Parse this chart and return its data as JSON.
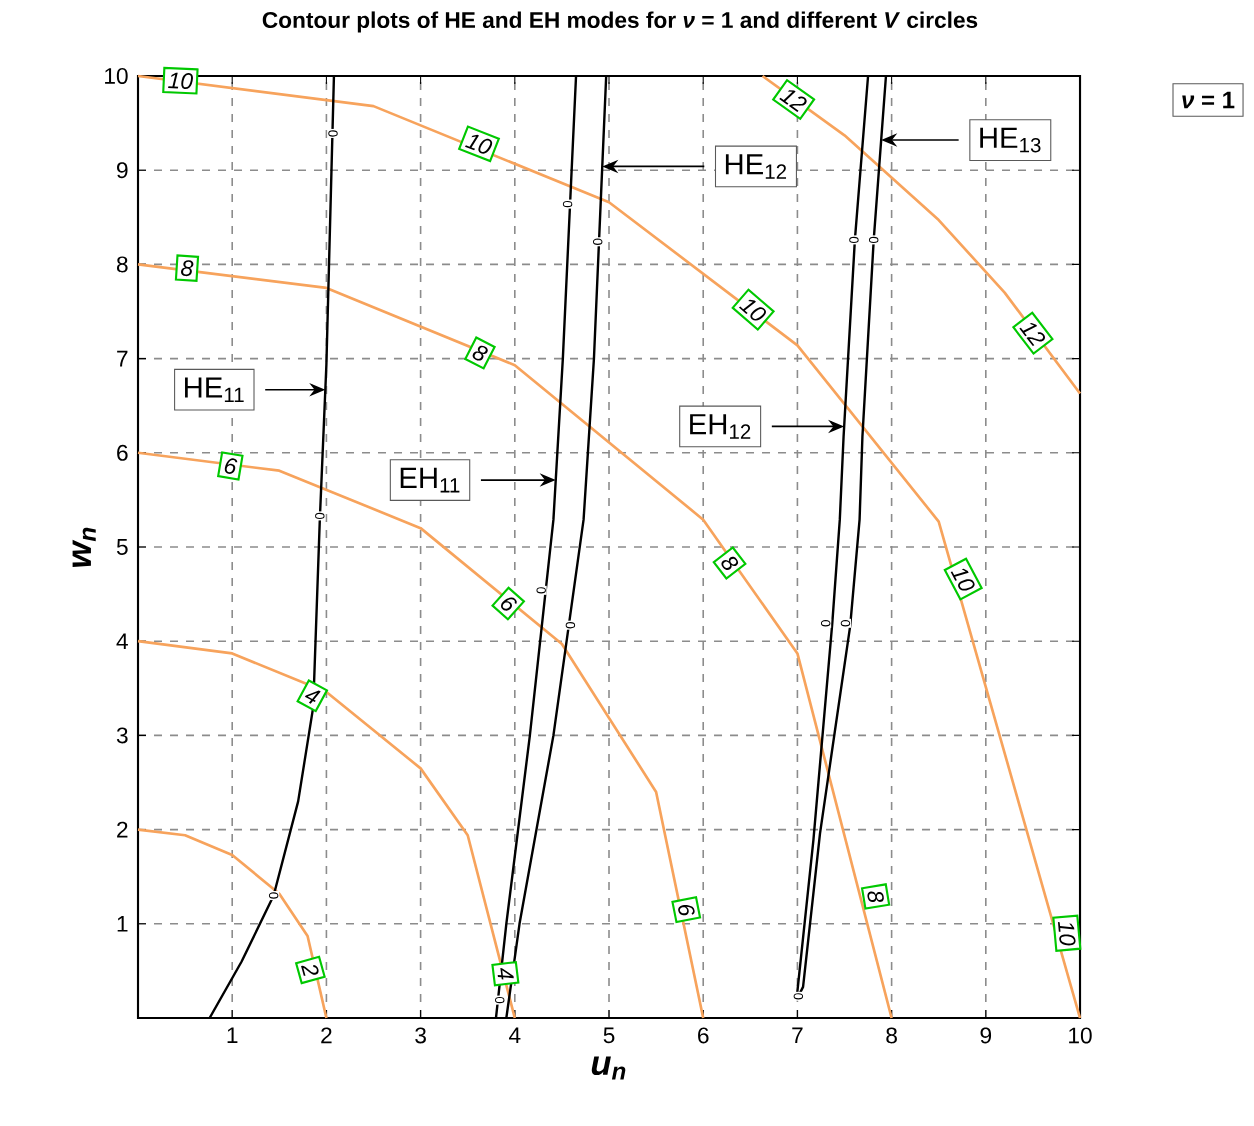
{
  "chart_data": {
    "type": "line",
    "title": "Contour plots of HE and EH modes for *ν* = 1 and different *V* circles",
    "xlabel": "u$_{n}$",
    "ylabel": "w$_{n}$",
    "xlim": [
      0,
      10
    ],
    "ylim": [
      0,
      10
    ],
    "xticks": [
      1,
      2,
      3,
      4,
      5,
      6,
      7,
      8,
      9,
      10
    ],
    "yticks": [
      1,
      2,
      3,
      4,
      5,
      6,
      7,
      8,
      9,
      10
    ],
    "grid": true,
    "marker": "none",
    "line_style": "solid",
    "series": [
      {
        "color": "#f7a35c",
        "x": [
          0,
          0.5,
          1,
          1.5,
          1.8,
          2
        ],
        "values": [
          2,
          1.94,
          1.73,
          1.32,
          0.87,
          0
        ]
      },
      {
        "color": "#f7a35c",
        "x": [
          0,
          1,
          2,
          3,
          3.5,
          4
        ],
        "values": [
          4,
          3.87,
          3.46,
          2.65,
          1.94,
          0
        ]
      },
      {
        "color": "#f7a35c",
        "x": [
          0,
          1.5,
          3,
          4.5,
          5.5,
          6
        ],
        "values": [
          6,
          5.81,
          5.2,
          3.97,
          2.4,
          0
        ]
      },
      {
        "color": "#f7a35c",
        "x": [
          0,
          2,
          4,
          6,
          7,
          8
        ],
        "values": [
          8,
          7.75,
          6.93,
          5.29,
          3.87,
          0
        ]
      },
      {
        "color": "#f7a35c",
        "x": [
          0,
          2.5,
          5,
          7,
          8.5,
          10
        ],
        "values": [
          10,
          9.68,
          8.66,
          7.14,
          5.27,
          0
        ]
      },
      {
        "color": "#f7a35c",
        "x": [
          6.63,
          7.5,
          8.5,
          9.2,
          10
        ],
        "values": [
          10,
          9.37,
          8.47,
          7.7,
          6.63
        ]
      },
      {
        "color": "#000000",
        "x": [
          0.76,
          1.1,
          1.44,
          1.7,
          1.86,
          1.93,
          2.0,
          2.08
        ],
        "values": [
          0,
          0.6,
          1.3,
          2.3,
          3.3,
          5.29,
          6.94,
          10
        ]
      },
      {
        "color": "#000000",
        "x": [
          3.8,
          3.91,
          4.16,
          4.41,
          4.51,
          4.65
        ],
        "values": [
          0,
          1,
          3,
          5.29,
          7,
          10
        ]
      },
      {
        "color": "#000000",
        "x": [
          3.91,
          4.05,
          4.41,
          4.73,
          4.84,
          4.97
        ],
        "values": [
          0,
          1,
          3,
          5.29,
          7,
          10
        ]
      },
      {
        "color": "#000000",
        "x": [
          6.99,
          7.17,
          7.37,
          7.45,
          7.49,
          7.61,
          7.75
        ],
        "values": [
          0.19,
          1.89,
          4.19,
          5.29,
          6.17,
          8.26,
          10
        ]
      },
      {
        "color": "#000000",
        "x": [
          6.99,
          7.06,
          7.24,
          7.56,
          7.66,
          7.69,
          7.81,
          7.94
        ],
        "values": [
          0.19,
          0.33,
          1.96,
          4.16,
          5.29,
          6.17,
          8.26,
          10
        ]
      }
    ],
    "annotations": [
      {
        "text": "HE$_{11}$",
        "x": 0.81,
        "y": 6.67
      },
      {
        "text": "EH$_{11}$",
        "x": 3.1,
        "y": 5.71
      },
      {
        "text": "EH$_{12}$",
        "x": 6.18,
        "y": 6.28
      },
      {
        "text": "HE$_{12}$",
        "x": 6.56,
        "y": 9.04
      },
      {
        "text": "HE$_{13}$",
        "x": 9.26,
        "y": 9.32
      },
      {
        "text": "2",
        "x": 1.83,
        "y": 0.51
      },
      {
        "text": "4",
        "x": 3.9,
        "y": 0.47
      },
      {
        "text": "4",
        "x": 1.85,
        "y": 3.42
      },
      {
        "text": "6",
        "x": 3.93,
        "y": 4.4
      },
      {
        "text": "6",
        "x": 5.82,
        "y": 1.15
      },
      {
        "text": "6",
        "x": 0.98,
        "y": 5.86
      },
      {
        "text": "8",
        "x": 0.52,
        "y": 7.96
      },
      {
        "text": "8",
        "x": 3.63,
        "y": 7.06
      },
      {
        "text": "8",
        "x": 6.28,
        "y": 4.83
      },
      {
        "text": "8",
        "x": 7.83,
        "y": 1.29
      },
      {
        "text": "10",
        "x": 0.45,
        "y": 9.95
      },
      {
        "text": "10",
        "x": 3.62,
        "y": 9.28
      },
      {
        "text": "10",
        "x": 6.53,
        "y": 7.52
      },
      {
        "text": "10",
        "x": 8.76,
        "y": 4.66
      },
      {
        "text": "10",
        "x": 9.86,
        "y": 0.9
      },
      {
        "text": "12",
        "x": 6.96,
        "y": 9.75
      },
      {
        "text": "12",
        "x": 9.5,
        "y": 7.27
      },
      {
        "text": "0",
        "x": 2.07,
        "y": 9.39
      },
      {
        "text": "0",
        "x": 1.93,
        "y": 5.33
      },
      {
        "text": "0",
        "x": 1.44,
        "y": 1.3
      },
      {
        "text": "0",
        "x": 4.56,
        "y": 8.64
      },
      {
        "text": "0",
        "x": 4.88,
        "y": 8.24
      },
      {
        "text": "0",
        "x": 4.28,
        "y": 4.54
      },
      {
        "text": "0",
        "x": 4.59,
        "y": 4.17
      },
      {
        "text": "0",
        "x": 3.84,
        "y": 0.19
      },
      {
        "text": "0",
        "x": 7.6,
        "y": 8.26
      },
      {
        "text": "0",
        "x": 7.81,
        "y": 8.26
      },
      {
        "text": "0",
        "x": 7.3,
        "y": 4.19
      },
      {
        "text": "0",
        "x": 7.51,
        "y": 4.19
      },
      {
        "text": "0",
        "x": 7.01,
        "y": 0.23
      },
      "*ν* = 1"
    ]
  }
}
